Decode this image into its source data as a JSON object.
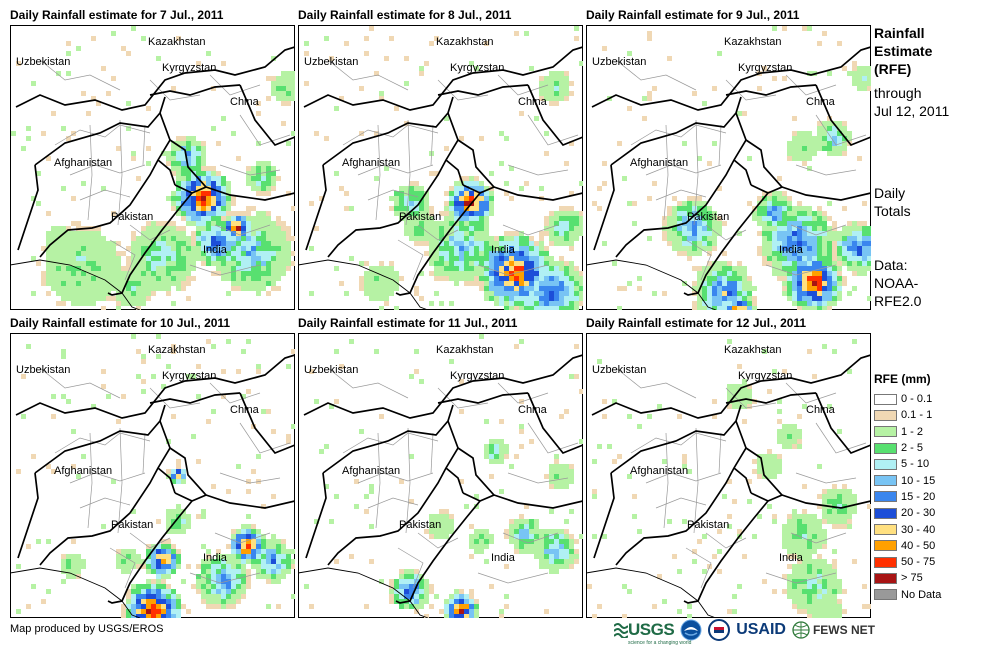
{
  "panels": [
    {
      "title": "Daily Rainfall estimate for 7 Jul., 2011"
    },
    {
      "title": "Daily Rainfall estimate for 8 Jul., 2011"
    },
    {
      "title": "Daily Rainfall estimate for 9 Jul., 2011"
    },
    {
      "title": "Daily Rainfall estimate for 10 Jul., 2011"
    },
    {
      "title": "Daily Rainfall estimate for 11 Jul., 2011"
    },
    {
      "title": "Daily Rainfall estimate for 12 Jul., 2011"
    }
  ],
  "places": {
    "kazakhstan": "Kazakhstan",
    "uzbekistan": "Uzbekistan",
    "kyrgyzstan": "Kyrgyzstan",
    "china": "China",
    "afghanistan": "Afghanistan",
    "pakistan": "Pakistan",
    "india": "India"
  },
  "side": {
    "title_lines": [
      "Rainfall",
      "Estimate",
      "(RFE)"
    ],
    "through_lines": [
      "through",
      "Jul 12, 2011"
    ],
    "daily_lines": [
      "Daily",
      "Totals"
    ],
    "data_lines": [
      "Data:",
      "NOAA-",
      "RFE2.0"
    ]
  },
  "legend": {
    "title": "RFE (mm)",
    "items": [
      {
        "label": "0 - 0.1",
        "color": "#ffffff"
      },
      {
        "label": "0.1 - 1",
        "color": "#f0d8b4"
      },
      {
        "label": "1 - 2",
        "color": "#b6f2a4"
      },
      {
        "label": "2 - 5",
        "color": "#58e070"
      },
      {
        "label": "5 - 10",
        "color": "#b0f0f4"
      },
      {
        "label": "10 - 15",
        "color": "#78c4f4"
      },
      {
        "label": "15 - 20",
        "color": "#3a86ee"
      },
      {
        "label": "20 - 30",
        "color": "#1c4ed8"
      },
      {
        "label": "30 - 40",
        "color": "#ffe080"
      },
      {
        "label": "40 - 50",
        "color": "#ffa000"
      },
      {
        "label": "50 - 75",
        "color": "#ff3000"
      },
      {
        "label": "> 75",
        "color": "#a81414"
      },
      {
        "label": "No Data",
        "color": "#999999"
      }
    ]
  },
  "footer": {
    "credit": "Map produced by USGS/EROS",
    "usgs": "USGS",
    "usgs_tagline": "science for a changing world",
    "usaid": "USAID",
    "fews": "FEWS NET"
  }
}
